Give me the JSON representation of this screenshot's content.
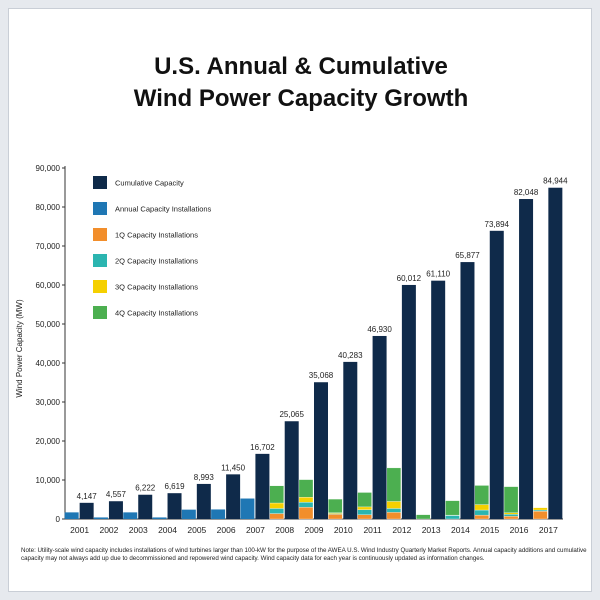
{
  "chart_data": {
    "type": "bar",
    "title": "U.S. Annual & Cumulative",
    "subtitle": "Wind Power Capacity Growth",
    "ylabel": "Wind Power Capacity (MW)",
    "xlabel": "",
    "ylim": [
      0,
      90000
    ],
    "yticks": [
      0,
      10000,
      20000,
      30000,
      40000,
      50000,
      60000,
      70000,
      80000,
      90000
    ],
    "ytick_labels": [
      "0",
      "10,000",
      "20,000",
      "30,000",
      "40,000",
      "50,000",
      "60,000",
      "70,000",
      "80,000",
      "90,000"
    ],
    "grid": false,
    "legend_position": "top-left",
    "categories": [
      "2001",
      "2002",
      "2003",
      "2004",
      "2005",
      "2006",
      "2007",
      "2008",
      "2009",
      "2010",
      "2011",
      "2012",
      "2013",
      "2014",
      "2015",
      "2016",
      "2017"
    ],
    "series": [
      {
        "name": "Cumulative Capacity",
        "color": "#0f2a4a",
        "values": [
          4147,
          4557,
          6222,
          6619,
          8993,
          11450,
          16702,
          25065,
          35068,
          40283,
          46930,
          60012,
          61110,
          65877,
          73894,
          82048,
          84944
        ],
        "labels": [
          "4,147",
          "4,557",
          "6,222",
          "6,619",
          "8,993",
          "11,450",
          "16,702",
          "25,065",
          "35,068",
          "40,283",
          "46,930",
          "60,012",
          "61,110",
          "65,877",
          "73,894",
          "82,048",
          "84,944"
        ]
      },
      {
        "name": "Annual Capacity Installations",
        "color": "#1f77b4",
        "values": [
          1700,
          400,
          1700,
          400,
          2400,
          2450,
          5250,
          null,
          null,
          null,
          null,
          null,
          null,
          null,
          null,
          null,
          null
        ]
      },
      {
        "name": "1Q Capacity Installations",
        "color": "#f28e2b",
        "values": [
          null,
          null,
          null,
          null,
          null,
          null,
          null,
          1400,
          3000,
          1200,
          1100,
          1700,
          0,
          0,
          1000,
          700,
          2000
        ]
      },
      {
        "name": "2Q Capacity Installations",
        "color": "#2bb5b0",
        "values": [
          null,
          null,
          null,
          null,
          null,
          null,
          null,
          1300,
          1300,
          200,
          1300,
          1000,
          0,
          900,
          1300,
          500,
          300
        ]
      },
      {
        "name": "3Q Capacity Installations",
        "color": "#f5d000",
        "values": [
          null,
          null,
          null,
          null,
          null,
          null,
          null,
          1400,
          1300,
          200,
          700,
          1800,
          0,
          100,
          1400,
          400,
          600
        ]
      },
      {
        "name": "4Q Capacity Installations",
        "color": "#4caf50",
        "values": [
          null,
          null,
          null,
          null,
          null,
          null,
          null,
          4400,
          4500,
          3500,
          3700,
          8600,
          1100,
          3700,
          4900,
          6700,
          0
        ]
      }
    ]
  },
  "note": "Note: Utility-scale wind capacity includes installations of wind turbines larger than 100-kW for the purpose of the AWEA U.S. Wind Industry Quarterly Market Reports. Annual capacity additions and cumulative capacity may not always add up due to decommissioned and repowered wind capacity. Wind capacity data for each year is continuously updated as information changes."
}
